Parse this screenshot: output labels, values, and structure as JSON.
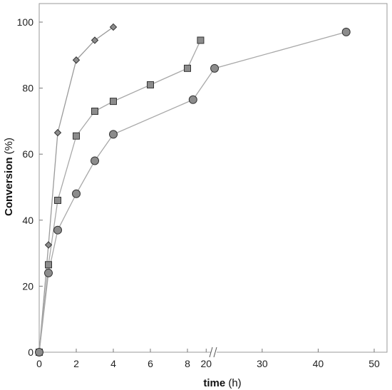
{
  "chart_data": {
    "type": "scatter",
    "xlabel_bold": "time",
    "xlabel_unit": " (h)",
    "ylabel_bold": "Conversion",
    "ylabel_unit": " (%)",
    "ylim": [
      0,
      105
    ],
    "yticks": [
      0,
      20,
      40,
      60,
      80,
      100
    ],
    "x_axis_broken": true,
    "x_segments": [
      {
        "range": [
          0,
          10
        ],
        "ticks": [
          0,
          2,
          4,
          6,
          8
        ]
      },
      {
        "range": [
          15,
          50
        ],
        "ticks": [
          20,
          30,
          40,
          50
        ]
      }
    ],
    "series": [
      {
        "marker": "diamond",
        "color": "#8c8c8c",
        "line_color": "#9a9a9a",
        "points": [
          [
            0,
            0
          ],
          [
            0.5,
            32.5
          ],
          [
            1,
            66.5
          ],
          [
            2,
            88.5
          ],
          [
            3,
            94.5
          ],
          [
            4,
            98.5
          ]
        ]
      },
      {
        "marker": "square",
        "color": "#8c8c8c",
        "line_color": "#a8a8a8",
        "points": [
          [
            0,
            0
          ],
          [
            0.5,
            26.5
          ],
          [
            1,
            46
          ],
          [
            2,
            65.5
          ],
          [
            3,
            73
          ],
          [
            4,
            76
          ],
          [
            6,
            81
          ],
          [
            8,
            86
          ],
          [
            19,
            94.5
          ]
        ]
      },
      {
        "marker": "circle",
        "color": "#8c8c8c",
        "line_color": "#a8a8a8",
        "points": [
          [
            0,
            0
          ],
          [
            0.5,
            24
          ],
          [
            1,
            37
          ],
          [
            2,
            48
          ],
          [
            3,
            58
          ],
          [
            4,
            66
          ],
          [
            8.3,
            76.5
          ],
          [
            21.5,
            86
          ],
          [
            45,
            97
          ]
        ]
      }
    ]
  }
}
